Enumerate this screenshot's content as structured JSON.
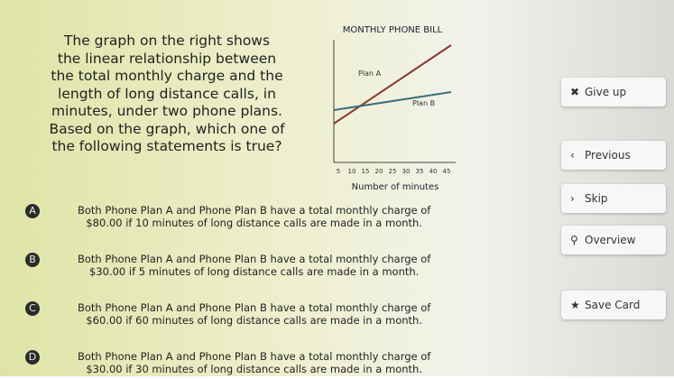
{
  "question": {
    "lines": [
      "The graph on the right shows",
      "the linear relationship between",
      "the total monthly charge and the",
      "length of long distance calls, in",
      "minutes, under two phone plans.",
      "Based on the graph, which one of",
      "the following statements is true?"
    ]
  },
  "graph": {
    "title": "MONTHLY PHONE BILL",
    "x_label": "Number of minutes",
    "series": [
      "Plan A",
      "Plan B"
    ],
    "xticks": [
      "5",
      "10",
      "15",
      "20",
      "25",
      "30",
      "35",
      "40",
      "45"
    ]
  },
  "options": [
    {
      "letter": "A",
      "lines": [
        "Both Phone Plan A and Phone Plan B have a total monthly charge of",
        "$80.00 if 10 minutes of long distance calls are made in a month."
      ]
    },
    {
      "letter": "B",
      "lines": [
        "Both Phone Plan A and Phone Plan B have a total monthly charge of",
        "$30.00 if 5 minutes of long distance calls are made in a month."
      ]
    },
    {
      "letter": "C",
      "lines": [
        "Both Phone Plan A and Phone Plan B have a total monthly charge of",
        "$60.00 if 60 minutes of long distance calls are made in a month."
      ]
    },
    {
      "letter": "D",
      "lines": [
        "Both Phone Plan A and Phone Plan B have a total monthly charge of",
        "$30.00 if 30 minutes of long distance calls are made in a month."
      ]
    }
  ],
  "buttons": [
    "Give up",
    "Previous",
    "Skip",
    "Overview",
    "Save Card"
  ]
}
